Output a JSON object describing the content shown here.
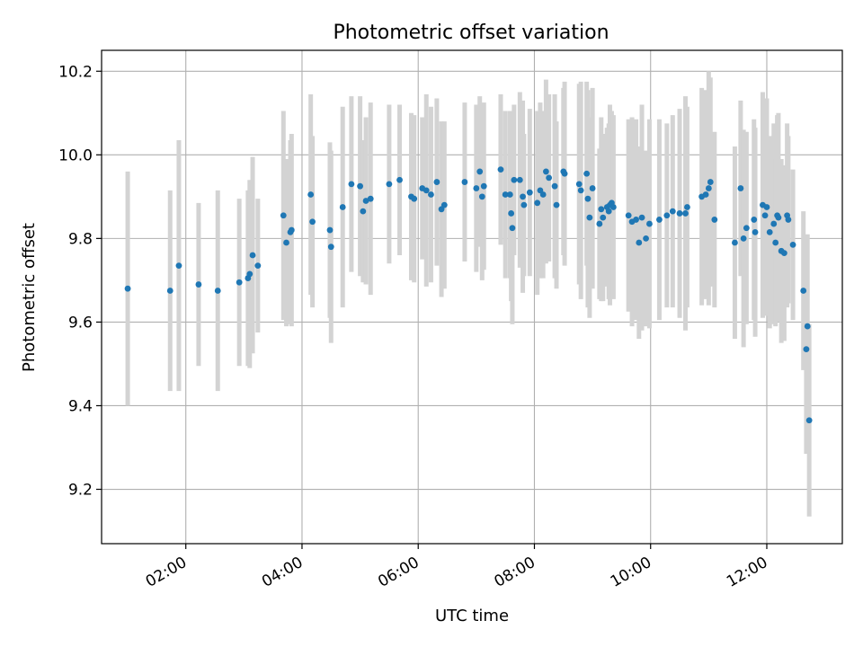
{
  "chart_data": {
    "type": "scatter",
    "title": "Photometric offset variation",
    "xlabel": "UTC time",
    "ylabel": "Photometric offset",
    "xlim_hours": [
      0.55,
      13.3
    ],
    "ylim": [
      9.07,
      10.25
    ],
    "grid": true,
    "x_ticks": [
      {
        "hour": 2,
        "label": "02:00"
      },
      {
        "hour": 4,
        "label": "04:00"
      },
      {
        "hour": 6,
        "label": "06:00"
      },
      {
        "hour": 8,
        "label": "08:00"
      },
      {
        "hour": 10,
        "label": "10:00"
      },
      {
        "hour": 12,
        "label": "12:00"
      }
    ],
    "y_ticks": [
      {
        "value": 9.2,
        "label": "9.2"
      },
      {
        "value": 9.4,
        "label": "9.4"
      },
      {
        "value": 9.6,
        "label": "9.6"
      },
      {
        "value": 9.8,
        "label": "9.8"
      },
      {
        "value": 10.0,
        "label": "10.0"
      },
      {
        "value": 10.2,
        "label": "10.2"
      }
    ],
    "colors": {
      "point": "#1f77b4",
      "errorbar": "#d3d3d3",
      "grid": "#b0b0b0",
      "axes": "#000000"
    },
    "series": [
      {
        "name": "offset",
        "points": [
          [
            1.0,
            9.68,
            0.28
          ],
          [
            1.73,
            9.675,
            0.24
          ],
          [
            1.88,
            9.735,
            0.3
          ],
          [
            2.22,
            9.69,
            0.195
          ],
          [
            2.55,
            9.675,
            0.24
          ],
          [
            2.92,
            9.695,
            0.2
          ],
          [
            3.07,
            9.705,
            0.21
          ],
          [
            3.1,
            9.715,
            0.225
          ],
          [
            3.15,
            9.76,
            0.235
          ],
          [
            3.24,
            9.735,
            0.16
          ],
          [
            3.68,
            9.855,
            0.25
          ],
          [
            3.73,
            9.79,
            0.2
          ],
          [
            3.8,
            9.815,
            0.22
          ],
          [
            3.82,
            9.82,
            0.23
          ],
          [
            4.15,
            9.905,
            0.24
          ],
          [
            4.18,
            9.84,
            0.205
          ],
          [
            4.48,
            9.82,
            0.21
          ],
          [
            4.5,
            9.78,
            0.23
          ],
          [
            4.7,
            9.875,
            0.24
          ],
          [
            4.85,
            9.93,
            0.21
          ],
          [
            5.0,
            9.925,
            0.215
          ],
          [
            5.05,
            9.865,
            0.17
          ],
          [
            5.1,
            9.89,
            0.2
          ],
          [
            5.18,
            9.895,
            0.23
          ],
          [
            5.5,
            9.93,
            0.19
          ],
          [
            5.68,
            9.94,
            0.18
          ],
          [
            5.88,
            9.9,
            0.2
          ],
          [
            5.93,
            9.895,
            0.2
          ],
          [
            6.07,
            9.92,
            0.17
          ],
          [
            6.14,
            9.915,
            0.23
          ],
          [
            6.22,
            9.905,
            0.21
          ],
          [
            6.32,
            9.935,
            0.2
          ],
          [
            6.4,
            9.87,
            0.21
          ],
          [
            6.45,
            9.88,
            0.2
          ],
          [
            6.8,
            9.935,
            0.19
          ],
          [
            7.0,
            9.92,
            0.2
          ],
          [
            7.06,
            9.96,
            0.18
          ],
          [
            7.1,
            9.9,
            0.2
          ],
          [
            7.13,
            9.925,
            0.2
          ],
          [
            7.42,
            9.965,
            0.18
          ],
          [
            7.5,
            9.905,
            0.2
          ],
          [
            7.58,
            9.905,
            0.2
          ],
          [
            7.6,
            9.86,
            0.21
          ],
          [
            7.62,
            9.825,
            0.23
          ],
          [
            7.65,
            9.94,
            0.18
          ],
          [
            7.75,
            9.94,
            0.21
          ],
          [
            7.8,
            9.9,
            0.23
          ],
          [
            7.82,
            9.88,
            0.17
          ],
          [
            7.92,
            9.91,
            0.2
          ],
          [
            8.05,
            9.885,
            0.22
          ],
          [
            8.1,
            9.915,
            0.21
          ],
          [
            8.15,
            9.905,
            0.2
          ],
          [
            8.2,
            9.96,
            0.22
          ],
          [
            8.25,
            9.945,
            0.2
          ],
          [
            8.35,
            9.925,
            0.22
          ],
          [
            8.38,
            9.88,
            0.2
          ],
          [
            8.5,
            9.96,
            0.2
          ],
          [
            8.52,
            9.955,
            0.22
          ],
          [
            8.77,
            9.93,
            0.24
          ],
          [
            8.8,
            9.915,
            0.26
          ],
          [
            8.9,
            9.955,
            0.22
          ],
          [
            8.92,
            9.895,
            0.26
          ],
          [
            8.95,
            9.85,
            0.24
          ],
          [
            9.0,
            9.92,
            0.24
          ],
          [
            9.12,
            9.835,
            0.18
          ],
          [
            9.15,
            9.87,
            0.22
          ],
          [
            9.18,
            9.85,
            0.2
          ],
          [
            9.25,
            9.875,
            0.19
          ],
          [
            9.3,
            9.88,
            0.24
          ],
          [
            9.33,
            9.885,
            0.22
          ],
          [
            9.28,
            9.865,
            0.21
          ],
          [
            9.36,
            9.875,
            0.22
          ],
          [
            9.62,
            9.855,
            0.23
          ],
          [
            9.68,
            9.84,
            0.25
          ],
          [
            9.75,
            9.845,
            0.24
          ],
          [
            9.8,
            9.79,
            0.23
          ],
          [
            9.85,
            9.85,
            0.27
          ],
          [
            9.92,
            9.8,
            0.21
          ],
          [
            9.98,
            9.835,
            0.25
          ],
          [
            10.15,
            9.845,
            0.24
          ],
          [
            10.28,
            9.855,
            0.22
          ],
          [
            10.38,
            9.865,
            0.23
          ],
          [
            10.5,
            9.86,
            0.25
          ],
          [
            10.6,
            9.86,
            0.28
          ],
          [
            10.63,
            9.875,
            0.24
          ],
          [
            10.88,
            9.9,
            0.26
          ],
          [
            10.95,
            9.905,
            0.25
          ],
          [
            11.0,
            9.92,
            0.28
          ],
          [
            11.03,
            9.935,
            0.25
          ],
          [
            11.1,
            9.845,
            0.21
          ],
          [
            11.45,
            9.79,
            0.23
          ],
          [
            11.55,
            9.92,
            0.21
          ],
          [
            11.6,
            9.8,
            0.26
          ],
          [
            11.65,
            9.825,
            0.23
          ],
          [
            11.78,
            9.845,
            0.24
          ],
          [
            11.8,
            9.815,
            0.25
          ],
          [
            11.93,
            9.88,
            0.27
          ],
          [
            11.97,
            9.855,
            0.22
          ],
          [
            12.0,
            9.875,
            0.26
          ],
          [
            12.05,
            9.815,
            0.23
          ],
          [
            12.12,
            9.835,
            0.24
          ],
          [
            12.15,
            9.79,
            0.2
          ],
          [
            12.18,
            9.855,
            0.24
          ],
          [
            12.2,
            9.85,
            0.25
          ],
          [
            12.25,
            9.77,
            0.22
          ],
          [
            12.3,
            9.765,
            0.21
          ],
          [
            12.35,
            9.855,
            0.22
          ],
          [
            12.37,
            9.845,
            0.2
          ],
          [
            12.45,
            9.785,
            0.18
          ],
          [
            12.63,
            9.675,
            0.19
          ],
          [
            12.68,
            9.535,
            0.25
          ],
          [
            12.7,
            9.59,
            0.22
          ],
          [
            12.73,
            9.365,
            0.23
          ]
        ]
      }
    ]
  }
}
